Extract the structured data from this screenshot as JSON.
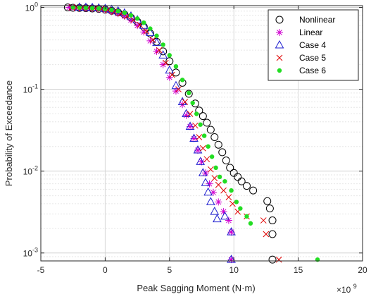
{
  "chart_data": {
    "type": "scatter",
    "title": "",
    "xlabel": "Peak Sagging Moment (N·m)",
    "ylabel": "Probability of Exceedance",
    "x_multiplier_label": "×10",
    "x_multiplier_exponent": "9",
    "xlim": [
      -5,
      20
    ],
    "ylim": [
      0.0008,
      1.05
    ],
    "yscale": "log",
    "xticks": [
      -5,
      0,
      5,
      10,
      15,
      20
    ],
    "xtick_labels": [
      "-5",
      "0",
      "5",
      "10",
      "15",
      "20"
    ],
    "yticks": [
      0.001,
      0.01,
      0.1,
      1
    ],
    "ytick_labels": [
      "10",
      "10",
      "10",
      "10"
    ],
    "ytick_exponents": [
      "-3",
      "-2",
      "-1",
      "0"
    ],
    "grid": true,
    "legend_position": "top-right",
    "series": [
      {
        "name": "Nonlinear",
        "marker": "circle",
        "color": "#000000",
        "points": [
          [
            -2.9,
            1.0
          ],
          [
            -2.5,
            0.99
          ],
          [
            -2.0,
            0.985
          ],
          [
            -1.5,
            0.98
          ],
          [
            -1.0,
            0.97
          ],
          [
            -0.5,
            0.96
          ],
          [
            0.0,
            0.94
          ],
          [
            0.5,
            0.91
          ],
          [
            1.0,
            0.87
          ],
          [
            1.5,
            0.82
          ],
          [
            2.0,
            0.75
          ],
          [
            2.5,
            0.67
          ],
          [
            3.0,
            0.58
          ],
          [
            3.5,
            0.48
          ],
          [
            4.0,
            0.38
          ],
          [
            4.5,
            0.29
          ],
          [
            5.0,
            0.22
          ],
          [
            5.5,
            0.16
          ],
          [
            6.0,
            0.12
          ],
          [
            6.5,
            0.088
          ],
          [
            7.0,
            0.067
          ],
          [
            7.3,
            0.055
          ],
          [
            7.6,
            0.047
          ],
          [
            7.9,
            0.039
          ],
          [
            8.2,
            0.032
          ],
          [
            8.5,
            0.026
          ],
          [
            8.8,
            0.021
          ],
          [
            9.1,
            0.017
          ],
          [
            9.4,
            0.0135
          ],
          [
            9.7,
            0.011
          ],
          [
            10.0,
            0.0095
          ],
          [
            10.3,
            0.0085
          ],
          [
            10.6,
            0.0075
          ],
          [
            11.0,
            0.0066
          ],
          [
            11.5,
            0.0058
          ],
          [
            12.6,
            0.0043
          ],
          [
            12.8,
            0.0035
          ],
          [
            13.0,
            0.0025
          ],
          [
            13.0,
            0.0017
          ],
          [
            13.0,
            0.00083
          ]
        ]
      },
      {
        "name": "Linear",
        "marker": "asterisk",
        "color": "#d000d0",
        "points": [
          [
            -2.8,
            1.0
          ],
          [
            -2.4,
            0.99
          ],
          [
            -2.0,
            0.985
          ],
          [
            -1.5,
            0.98
          ],
          [
            -1.0,
            0.97
          ],
          [
            -0.5,
            0.955
          ],
          [
            0.0,
            0.93
          ],
          [
            0.5,
            0.89
          ],
          [
            1.0,
            0.84
          ],
          [
            1.5,
            0.78
          ],
          [
            2.0,
            0.7
          ],
          [
            2.5,
            0.6
          ],
          [
            3.0,
            0.5
          ],
          [
            3.5,
            0.39
          ],
          [
            4.0,
            0.29
          ],
          [
            4.5,
            0.2
          ],
          [
            5.0,
            0.14
          ],
          [
            5.5,
            0.095
          ],
          [
            6.0,
            0.065
          ],
          [
            6.3,
            0.048
          ],
          [
            6.6,
            0.035
          ],
          [
            6.9,
            0.025
          ],
          [
            7.2,
            0.018
          ],
          [
            7.5,
            0.013
          ],
          [
            7.8,
            0.0095
          ],
          [
            8.1,
            0.007
          ],
          [
            8.4,
            0.0055
          ],
          [
            8.8,
            0.0042
          ],
          [
            9.2,
            0.0032
          ],
          [
            9.6,
            0.0025
          ],
          [
            9.8,
            0.0018
          ],
          [
            9.8,
            0.00083
          ]
        ]
      },
      {
        "name": "Case 4",
        "marker": "triangle",
        "color": "#2020d0",
        "points": [
          [
            -2.0,
            1.0
          ],
          [
            -1.5,
            0.995
          ],
          [
            -1.0,
            0.99
          ],
          [
            -0.5,
            0.98
          ],
          [
            0.0,
            0.965
          ],
          [
            0.5,
            0.94
          ],
          [
            1.0,
            0.9
          ],
          [
            1.5,
            0.85
          ],
          [
            2.0,
            0.78
          ],
          [
            2.5,
            0.7
          ],
          [
            3.0,
            0.6
          ],
          [
            3.5,
            0.49
          ],
          [
            4.0,
            0.37
          ],
          [
            4.5,
            0.26
          ],
          [
            5.0,
            0.17
          ],
          [
            5.5,
            0.11
          ],
          [
            6.0,
            0.07
          ],
          [
            6.3,
            0.05
          ],
          [
            6.6,
            0.035
          ],
          [
            6.9,
            0.025
          ],
          [
            7.2,
            0.018
          ],
          [
            7.4,
            0.013
          ],
          [
            7.6,
            0.0095
          ],
          [
            7.8,
            0.0072
          ],
          [
            8.0,
            0.0055
          ],
          [
            8.2,
            0.0042
          ],
          [
            8.5,
            0.0032
          ],
          [
            8.7,
            0.0026
          ],
          [
            9.3,
            0.0028
          ],
          [
            9.8,
            0.0018
          ],
          [
            9.8,
            0.00083
          ]
        ]
      },
      {
        "name": "Case 5",
        "marker": "cross",
        "color": "#e00000",
        "points": [
          [
            -2.6,
            1.0
          ],
          [
            -2.2,
            0.99
          ],
          [
            -1.8,
            0.985
          ],
          [
            -1.3,
            0.98
          ],
          [
            -0.8,
            0.97
          ],
          [
            -0.3,
            0.955
          ],
          [
            0.2,
            0.93
          ],
          [
            0.7,
            0.89
          ],
          [
            1.2,
            0.84
          ],
          [
            1.7,
            0.78
          ],
          [
            2.2,
            0.7
          ],
          [
            2.7,
            0.61
          ],
          [
            3.2,
            0.51
          ],
          [
            3.7,
            0.4
          ],
          [
            4.2,
            0.3
          ],
          [
            4.7,
            0.21
          ],
          [
            5.2,
            0.15
          ],
          [
            5.7,
            0.1
          ],
          [
            6.2,
            0.07
          ],
          [
            6.6,
            0.05
          ],
          [
            7.0,
            0.036
          ],
          [
            7.3,
            0.026
          ],
          [
            7.6,
            0.019
          ],
          [
            7.9,
            0.014
          ],
          [
            8.2,
            0.0105
          ],
          [
            8.5,
            0.0082
          ],
          [
            8.8,
            0.0068
          ],
          [
            9.2,
            0.0058
          ],
          [
            9.6,
            0.0048
          ],
          [
            9.9,
            0.004
          ],
          [
            10.3,
            0.0032
          ],
          [
            11.0,
            0.0028
          ],
          [
            12.3,
            0.0025
          ],
          [
            12.5,
            0.0017
          ],
          [
            13.5,
            0.00083
          ]
        ]
      },
      {
        "name": "Case 6",
        "marker": "dot",
        "color": "#22dd22",
        "points": [
          [
            -2.5,
            1.0
          ],
          [
            -2.0,
            0.995
          ],
          [
            -1.5,
            0.99
          ],
          [
            -1.0,
            0.98
          ],
          [
            -0.5,
            0.97
          ],
          [
            0.0,
            0.955
          ],
          [
            0.5,
            0.93
          ],
          [
            1.0,
            0.9
          ],
          [
            1.5,
            0.86
          ],
          [
            2.0,
            0.8
          ],
          [
            2.5,
            0.73
          ],
          [
            3.0,
            0.65
          ],
          [
            3.5,
            0.55
          ],
          [
            4.0,
            0.45
          ],
          [
            4.5,
            0.35
          ],
          [
            5.0,
            0.26
          ],
          [
            5.5,
            0.19
          ],
          [
            6.0,
            0.13
          ],
          [
            6.5,
            0.09
          ],
          [
            6.8,
            0.068
          ],
          [
            7.1,
            0.05
          ],
          [
            7.4,
            0.037
          ],
          [
            7.7,
            0.027
          ],
          [
            8.0,
            0.02
          ],
          [
            8.3,
            0.015
          ],
          [
            8.6,
            0.011
          ],
          [
            8.9,
            0.0085
          ],
          [
            9.3,
            0.0075
          ],
          [
            9.8,
            0.0058
          ],
          [
            10.2,
            0.0042
          ],
          [
            10.5,
            0.0035
          ],
          [
            11.0,
            0.0028
          ],
          [
            11.3,
            0.0023
          ],
          [
            16.5,
            0.00083
          ]
        ]
      }
    ]
  }
}
